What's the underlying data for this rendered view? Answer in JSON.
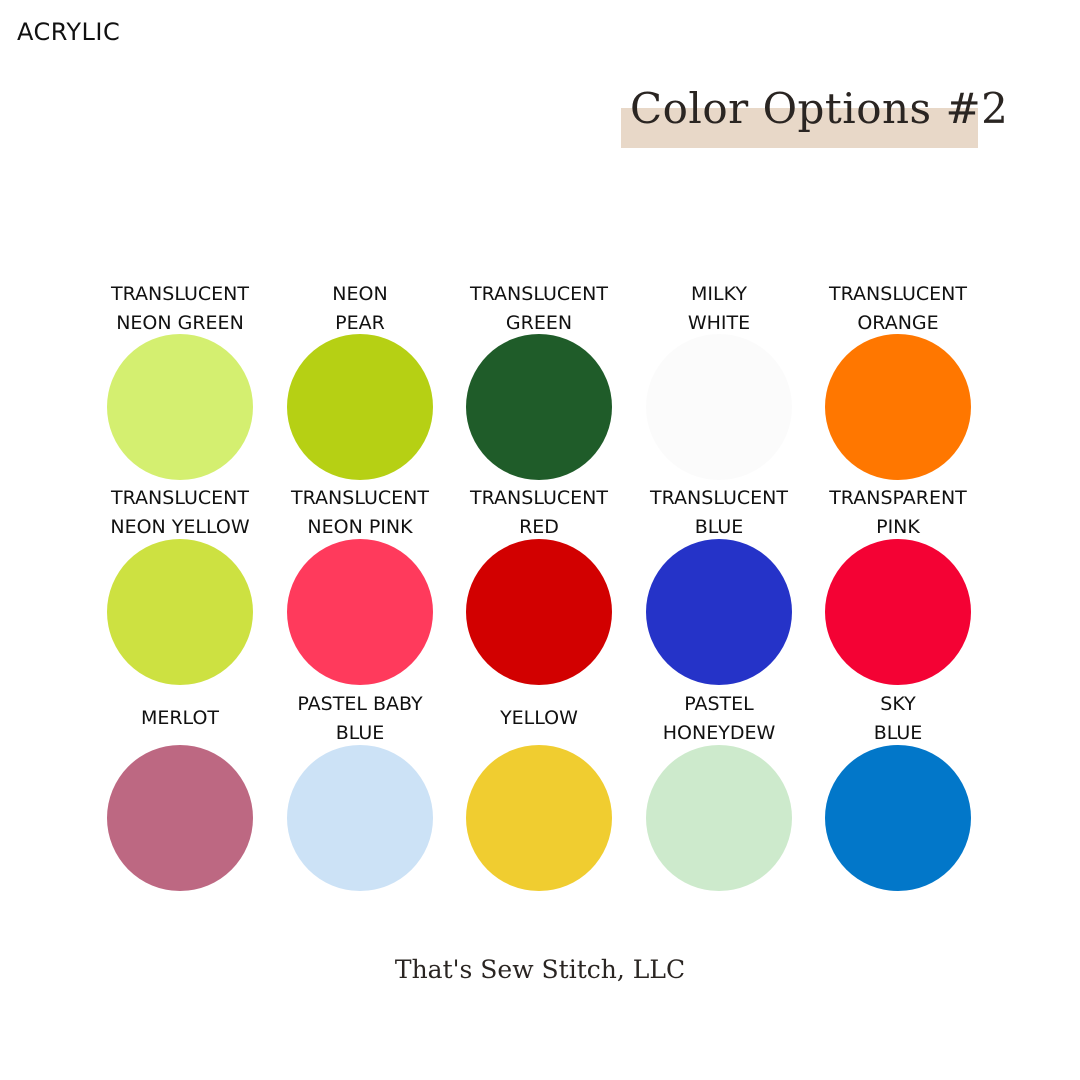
{
  "material": "ACRYLIC",
  "title": "Color Options #2",
  "title_bg_color": "#e8d8c8",
  "footer": "That's Sew Stitch, LLC",
  "swatches": [
    {
      "line1": "TRANSLUCENT",
      "line2": "NEON GREEN",
      "color": "#d4ef70"
    },
    {
      "line1": "NEON",
      "line2": "PEAR",
      "color": "#b6d014"
    },
    {
      "line1": "TRANSLUCENT",
      "line2": "GREEN",
      "color": "#1f5c29"
    },
    {
      "line1": "MILKY",
      "line2": "WHITE",
      "color": "#fbfbfb"
    },
    {
      "line1": "TRANSLUCENT",
      "line2": "ORANGE",
      "color": "#ff7700"
    },
    {
      "line1": "TRANSLUCENT",
      "line2": "NEON YELLOW",
      "color": "#cde141"
    },
    {
      "line1": "TRANSLUCENT",
      "line2": "NEON PINK",
      "color": "#ff3a5c"
    },
    {
      "line1": "TRANSLUCENT",
      "line2": "RED",
      "color": "#d20000"
    },
    {
      "line1": "TRANSLUCENT",
      "line2": "BLUE",
      "color": "#2533c8"
    },
    {
      "line1": "TRANSPARENT",
      "line2": "PINK",
      "color": "#f40234"
    },
    {
      "line1": "MERLOT",
      "line2": "",
      "color": "#bd6882"
    },
    {
      "line1": "PASTEL BABY",
      "line2": "BLUE",
      "color": "#cce2f6"
    },
    {
      "line1": "YELLOW",
      "line2": "",
      "color": "#f0cd30"
    },
    {
      "line1": "PASTEL",
      "line2": "HONEYDEW",
      "color": "#cdeacc"
    },
    {
      "line1": "SKY",
      "line2": "BLUE",
      "color": "#0277c9"
    }
  ]
}
